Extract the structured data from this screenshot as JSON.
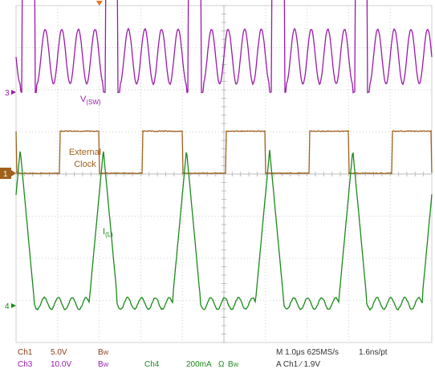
{
  "chart_data": {
    "type": "line",
    "title": "",
    "xlabel": "",
    "ylabel": "",
    "grid": true,
    "grid_divisions": {
      "x": 10,
      "y": 8
    },
    "time_per_div_us": 1.0,
    "colors": {
      "ch1": "#a0601a",
      "ch3": "#9a1aa8",
      "ch4": "#1a8a1a",
      "grid": "#d0d0d0",
      "marker": "#f07020",
      "footer_dark": "#8a3a1a",
      "footer_text": "#333333"
    },
    "annotations": {
      "sw": {
        "main": "V",
        "sub": "(SW)"
      },
      "clk": {
        "line1": "External",
        "line2": "Clock"
      },
      "il": {
        "main": "I",
        "sub": "(L)"
      }
    },
    "channel_markers": {
      "ch3": "3",
      "ch1": "1",
      "ch4": "4"
    },
    "series": [
      {
        "channel": "Ch3",
        "unit": "V",
        "volts_per_div": 10.0,
        "period_us": 2.0,
        "high_window_us": [
          0.05,
          0.35
        ],
        "high_v": 33,
        "low_v": 0,
        "ringing_centers_us": [
          0.45,
          0.85,
          1.25,
          1.65
        ],
        "ringing_amplitude_v": 13
      },
      {
        "channel": "Ch1",
        "unit": "V",
        "volts_per_div": 5.0,
        "period_us": 2.0,
        "high_window_us": [
          0.95,
          1.9
        ],
        "high_v": 5.0,
        "low_v": 0
      },
      {
        "channel": "Ch4",
        "unit": "mA",
        "ma_per_div": 200,
        "period_us": 2.0,
        "peak_time_us": 0.0,
        "peak_ma": 740,
        "valley_ma": -70,
        "ripple_ma": 55,
        "ripple_cycles": 8
      }
    ]
  },
  "footer": {
    "row1": {
      "ch": "Ch1",
      "scale": "5.0V",
      "bw": "B",
      "bw_sub": "W",
      "ch4": "Ch4",
      "ch4_scale": "200mA",
      "ohm": "Ω",
      "bw2": "B",
      "bw2_sub": "W",
      "timebase": "M 1.0μs 625MS/s",
      "pt": "1.6ns/pt"
    },
    "row2": {
      "ch": "Ch3",
      "scale": "10.0V",
      "bw": "B",
      "bw_sub": "W",
      "trigger": "A  Ch1  ∕  1.9V"
    }
  }
}
